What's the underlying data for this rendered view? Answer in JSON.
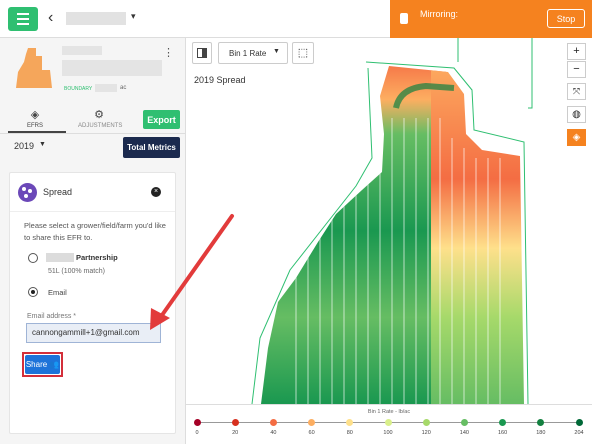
{
  "topbar": {
    "back_glyph": "‹",
    "farm_caret": "▾",
    "mirroring_label": "Mirroring:",
    "stop_label": "Stop"
  },
  "sidebar": {
    "boundary_label": "BOUNDARY",
    "boundary_unit": "ac",
    "tabs": [
      {
        "label": "EFRS",
        "icon": "layers-icon"
      },
      {
        "label": "ADJUSTMENTS",
        "icon": "gear-icon"
      }
    ],
    "export_label": "Export",
    "year": "2019",
    "total_metrics_label": "Total Metrics"
  },
  "share_card": {
    "title": "Spread",
    "prompt": "Please select a grower/field/farm you'd like to share this EFR to.",
    "partnership_name": "Partnership",
    "partnership_sub": "51L (100% match)",
    "email_option": "Email",
    "address_label": "Email address *",
    "email_value": "cannongammill+1@gmail.com",
    "share_label": "Share"
  },
  "map": {
    "rate_select": "Bin 1 Rate",
    "layer_label": "2019 Spread",
    "controls": [
      "+",
      "−"
    ]
  },
  "legend": {
    "title": "Bin 1 Rate - lb/ac",
    "ticks": [
      "0",
      "20",
      "40",
      "60",
      "80",
      "100",
      "120",
      "140",
      "160",
      "180",
      "204"
    ],
    "colors": [
      "#a50026",
      "#d7301f",
      "#f46d43",
      "#fdae61",
      "#fee08b",
      "#d9ef8b",
      "#a6d96a",
      "#66bd63",
      "#1a9850",
      "#138040",
      "#006837"
    ]
  },
  "colors": {
    "accent_green": "#2fbf71",
    "mirror_orange": "#f5821f",
    "navy": "#1b2a4e",
    "share_blue": "#1d73d9",
    "annotation_red": "#e23b3b"
  }
}
